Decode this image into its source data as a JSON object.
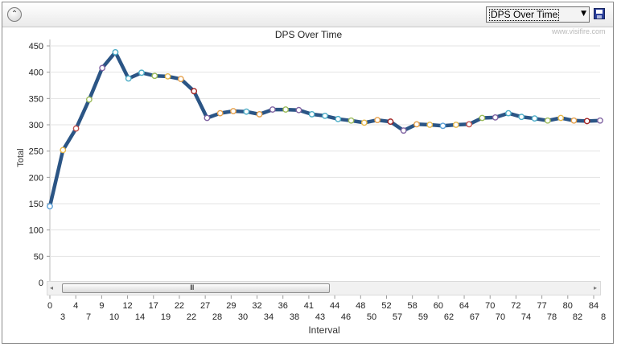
{
  "toolbar": {
    "collapse_icon": "chevron-up-icon",
    "collapse_glyph": "⌃",
    "chart_select": {
      "selected": "DPS Over Time",
      "arrow": "▼"
    },
    "save_icon": "floppy-disk-icon"
  },
  "watermark": "www.visifire.com",
  "scrollbar": {
    "left_arrow": "◂",
    "right_arrow": "▸",
    "grip": "III"
  },
  "chart_data": {
    "type": "line",
    "title": "DPS Over Time",
    "xlabel": "Interval",
    "ylabel": "Total",
    "ylim": [
      0,
      450
    ],
    "y_ticks": [
      0,
      50,
      100,
      150,
      200,
      250,
      300,
      350,
      400,
      450
    ],
    "x_tick_labels_row1": [
      "0",
      "4",
      "9",
      "12",
      "17",
      "22",
      "27",
      "29",
      "32",
      "36",
      "41",
      "44",
      "48",
      "52",
      "58",
      "60",
      "64",
      "70",
      "72",
      "77",
      "80",
      "84"
    ],
    "x_tick_labels_row2": [
      "3",
      "7",
      "10",
      "14",
      "19",
      "22",
      "28",
      "30",
      "34",
      "38",
      "43",
      "46",
      "50",
      "57",
      "59",
      "62",
      "67",
      "70",
      "74",
      "78",
      "82",
      "8"
    ],
    "grid": true,
    "legend": "none",
    "series": [
      {
        "color": "#2b5585",
        "values": [
          145,
          252,
          293,
          348,
          408,
          438,
          388,
          399,
          393,
          392,
          387,
          364,
          313,
          322,
          326,
          325,
          320,
          329,
          329,
          328,
          320,
          317,
          311,
          308,
          304,
          309,
          306,
          289,
          301,
          300,
          298,
          300,
          301,
          313,
          314,
          322,
          315,
          312,
          308,
          313,
          308,
          307,
          308
        ]
      }
    ],
    "marker_colors": [
      "#5aa0d8",
      "#e6b84a",
      "#c0504d",
      "#9bbb59",
      "#8064a2",
      "#4bacc6",
      "#4bacc6",
      "#4bacc6",
      "#9bbb59",
      "#e6b84a",
      "#e6a04a",
      "#a02020",
      "#8064a2",
      "#e6a04a",
      "#e6a04a",
      "#4bacc6",
      "#e6a04a",
      "#8064a2",
      "#9bbb59",
      "#8064a2",
      "#4bacc6",
      "#4bacc6",
      "#4bacc6",
      "#9bbb59",
      "#e6b84a",
      "#e6a04a",
      "#a02020",
      "#8064a2",
      "#e6a04a",
      "#e6b84a",
      "#5aa0d8",
      "#e6b84a",
      "#c0504d",
      "#9bbb59",
      "#8064a2",
      "#4bacc6",
      "#4bacc6",
      "#4bacc6",
      "#9bbb59",
      "#e6b84a",
      "#e6a04a",
      "#a02020",
      "#8064a2"
    ]
  }
}
